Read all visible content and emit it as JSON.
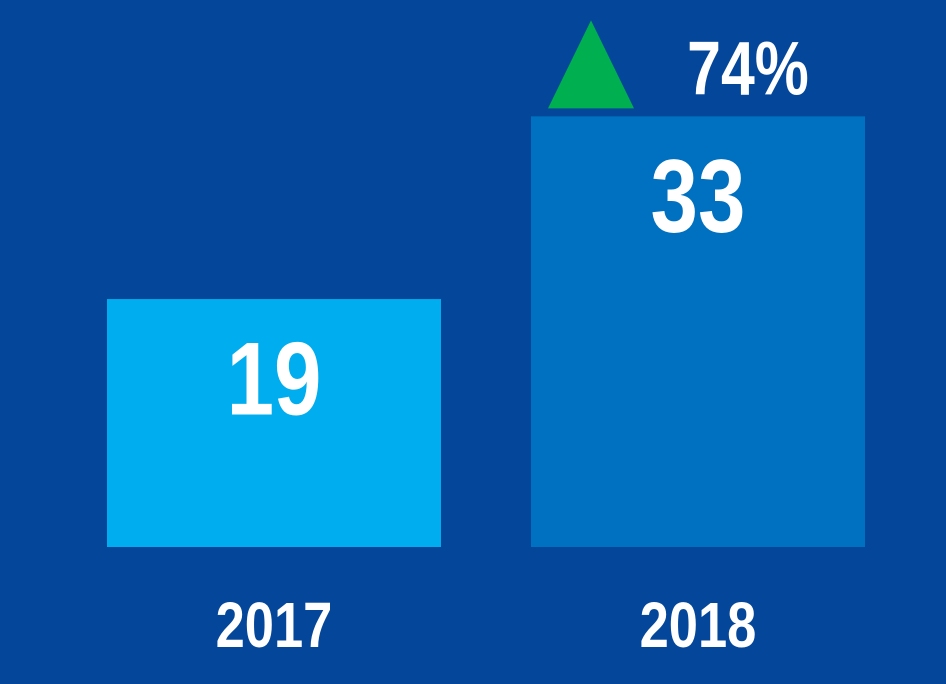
{
  "chart_data": {
    "type": "bar",
    "categories": [
      "2017",
      "2018"
    ],
    "values": [
      19,
      33
    ],
    "colors": [
      "#00adef",
      "#0070c0"
    ],
    "ylim": [
      0,
      40
    ],
    "annotation": {
      "text": "74%",
      "marker_color": "#00b050"
    }
  }
}
